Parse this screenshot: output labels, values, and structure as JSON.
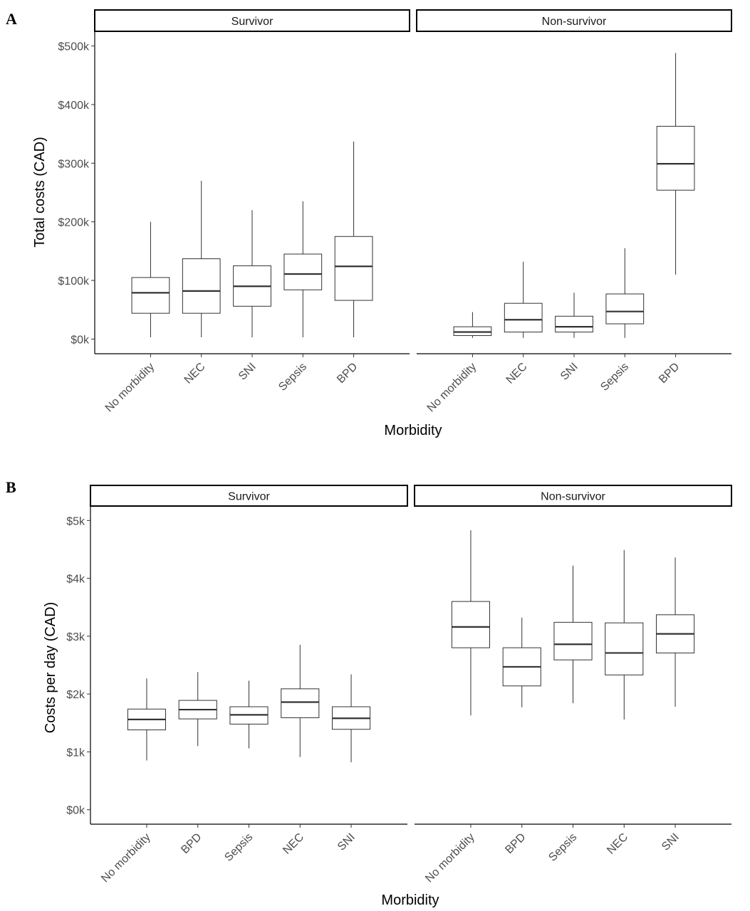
{
  "chart_data": [
    {
      "type": "boxplot",
      "panel_label": "A",
      "ylabel": "Total costs (CAD)",
      "xlabel": "Morbidity",
      "ylim": [
        -25000,
        525000
      ],
      "yticks": [
        0,
        100000,
        200000,
        300000,
        400000,
        500000
      ],
      "ytick_labels": [
        "$0k",
        "$100k",
        "$200k",
        "$300k",
        "$400k",
        "$500k"
      ],
      "grid": false,
      "facets": [
        {
          "name": "Survivor",
          "categories": [
            "No morbidity",
            "NEC",
            "SNI",
            "Sepsis",
            "BPD"
          ],
          "boxes": [
            {
              "min": 3000,
              "q1": 44000,
              "median": 79000,
              "q3": 105000,
              "max": 200000
            },
            {
              "min": 3000,
              "q1": 44000,
              "median": 82000,
              "q3": 137000,
              "max": 270000
            },
            {
              "min": 3000,
              "q1": 56000,
              "median": 90000,
              "q3": 125000,
              "max": 220000
            },
            {
              "min": 3000,
              "q1": 84000,
              "median": 111000,
              "q3": 145000,
              "max": 235000
            },
            {
              "min": 3000,
              "q1": 66000,
              "median": 124000,
              "q3": 175000,
              "max": 337000
            }
          ]
        },
        {
          "name": "Non-survivor",
          "categories": [
            "No morbidity",
            "NEC",
            "SNI",
            "Sepsis",
            "BPD"
          ],
          "boxes": [
            {
              "min": 2000,
              "q1": 6000,
              "median": 12000,
              "q3": 21000,
              "max": 46000
            },
            {
              "min": 2000,
              "q1": 12000,
              "median": 33000,
              "q3": 61000,
              "max": 132000
            },
            {
              "min": 2000,
              "q1": 12000,
              "median": 21000,
              "q3": 39000,
              "max": 79000
            },
            {
              "min": 2000,
              "q1": 26000,
              "median": 47000,
              "q3": 77000,
              "max": 155000
            },
            {
              "min": 110000,
              "q1": 254000,
              "median": 299000,
              "q3": 363000,
              "max": 488000
            }
          ]
        }
      ]
    },
    {
      "type": "boxplot",
      "panel_label": "B",
      "ylabel": "Costs per day (CAD)",
      "xlabel": "Morbidity",
      "ylim": [
        -250,
        5250
      ],
      "yticks": [
        0,
        1000,
        2000,
        3000,
        4000,
        5000
      ],
      "ytick_labels": [
        "$0k",
        "$1k",
        "$2k",
        "$3k",
        "$4k",
        "$5k"
      ],
      "grid": false,
      "facets": [
        {
          "name": "Survivor",
          "categories": [
            "No morbidity",
            "BPD",
            "Sepsis",
            "NEC",
            "SNI"
          ],
          "boxes": [
            {
              "min": 850,
              "q1": 1380,
              "median": 1560,
              "q3": 1740,
              "max": 2270
            },
            {
              "min": 1100,
              "q1": 1570,
              "median": 1730,
              "q3": 1890,
              "max": 2380
            },
            {
              "min": 1060,
              "q1": 1480,
              "median": 1640,
              "q3": 1780,
              "max": 2230
            },
            {
              "min": 910,
              "q1": 1590,
              "median": 1860,
              "q3": 2090,
              "max": 2850
            },
            {
              "min": 820,
              "q1": 1390,
              "median": 1580,
              "q3": 1780,
              "max": 2340
            }
          ]
        },
        {
          "name": "Non-survivor",
          "categories": [
            "No morbidity",
            "BPD",
            "Sepsis",
            "NEC",
            "SNI"
          ],
          "boxes": [
            {
              "min": 1630,
              "q1": 2800,
              "median": 3160,
              "q3": 3600,
              "max": 4830
            },
            {
              "min": 1770,
              "q1": 2140,
              "median": 2470,
              "q3": 2800,
              "max": 3320
            },
            {
              "min": 1840,
              "q1": 2590,
              "median": 2860,
              "q3": 3240,
              "max": 4220
            },
            {
              "min": 1560,
              "q1": 2330,
              "median": 2710,
              "q3": 3230,
              "max": 4490
            },
            {
              "min": 1780,
              "q1": 2710,
              "median": 3040,
              "q3": 3370,
              "max": 4360
            }
          ]
        }
      ]
    }
  ]
}
